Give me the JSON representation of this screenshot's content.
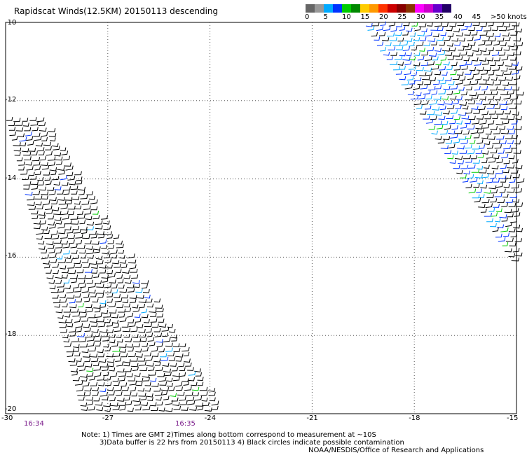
{
  "title": "Rapidscat Winds(12.5KM) 20150113 descending",
  "legend": {
    "colors": [
      "#666666",
      "#999999",
      "#00aaff",
      "#0033ff",
      "#00cc00",
      "#008800",
      "#ffcc00",
      "#ff9900",
      "#ff3300",
      "#cc0000",
      "#880000",
      "#883300",
      "#ff00ff",
      "#cc00cc",
      "#6600cc",
      "#220066"
    ],
    "labels": [
      "0",
      "5",
      "10",
      "15",
      "20",
      "25",
      "30",
      "35",
      "40",
      "45",
      ">50 knots"
    ]
  },
  "chart_data": {
    "type": "map",
    "x_ticks": [
      "-30",
      "-27",
      "-24",
      "-21",
      "-18",
      "-15"
    ],
    "y_ticks": [
      "-10",
      "-12",
      "-14",
      "-16",
      "-18",
      "-20"
    ],
    "xlim": [
      -30,
      -15
    ],
    "ylim": [
      -20,
      -10
    ],
    "grid": "dotted",
    "swaths": [
      {
        "name": "west",
        "time_labels": [
          "16:34",
          "16:35"
        ]
      },
      {
        "name": "east"
      }
    ]
  },
  "times": [
    "16:34",
    "16:35"
  ],
  "notes": [
    "Note: 1) Times are GMT 2)Times along bottom correspond to measurement at ~10S",
    "3)Data buffer is 22 hrs from 20150113 4) Black circles indicate possible contamination",
    "NOAA/NESDIS/Office of Research and Applications"
  ]
}
